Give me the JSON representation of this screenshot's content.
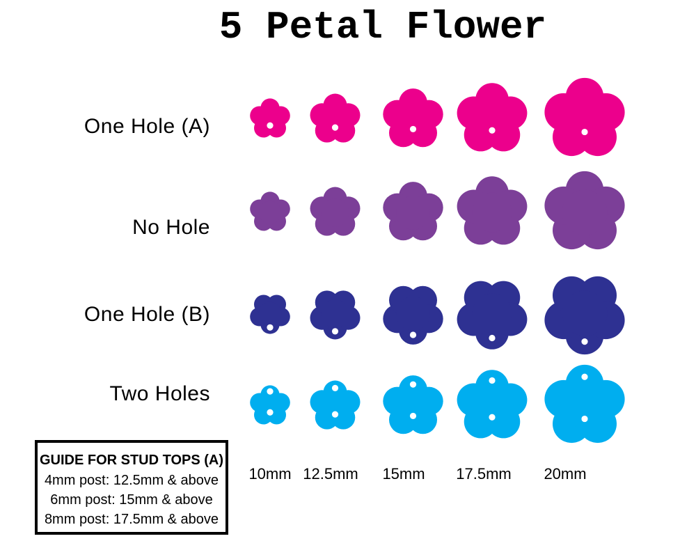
{
  "title": "5 Petal Flower",
  "background_color": "#FFFFFF",
  "text_color": "#000000",
  "hole_color": "#FFFFFF",
  "rows": [
    {
      "id": "one-hole-a",
      "label": "One Hole (A)",
      "color": "#EC008C",
      "holes": [
        "bottom-center"
      ],
      "rotation": 0
    },
    {
      "id": "no-hole",
      "label": "No Hole",
      "color": "#7C3F98",
      "holes": [],
      "rotation": 0
    },
    {
      "id": "one-hole-b",
      "label": "One Hole (B)",
      "color": "#2E3192",
      "holes": [
        "bottom-petal"
      ],
      "rotation": 180
    },
    {
      "id": "two-holes",
      "label": "Two Holes",
      "color": "#00AEEF",
      "holes": [
        "top-petal",
        "bottom-center"
      ],
      "rotation": 0
    }
  ],
  "sizes": [
    {
      "mm": 10,
      "label": "10mm"
    },
    {
      "mm": 12.5,
      "label": "12.5mm"
    },
    {
      "mm": 15,
      "label": "15mm"
    },
    {
      "mm": 17.5,
      "label": "17.5mm"
    },
    {
      "mm": 20,
      "label": "20mm"
    }
  ],
  "guide_box": {
    "title": "GUIDE FOR STUD TOPS (A)",
    "lines": [
      "4mm post: 12.5mm & above",
      "6mm post: 15mm & above",
      "8mm post: 17.5mm & above"
    ]
  }
}
